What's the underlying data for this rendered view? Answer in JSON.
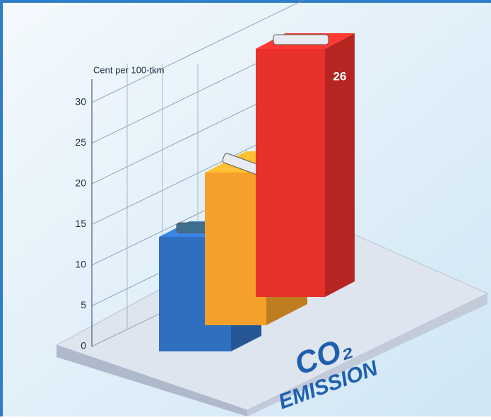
{
  "chart_data": {
    "type": "bar3d",
    "y_label": "Cent per 100-tkm",
    "categories": [
      null,
      null,
      null
    ],
    "values": [
      12,
      16,
      26
    ],
    "colors": [
      "#2f6fc0",
      "#f5a02a",
      "#e8302a"
    ],
    "ylim": [
      0,
      30
    ],
    "yticks": [
      0,
      5,
      10,
      15,
      20,
      25,
      30
    ],
    "grid": true,
    "annotations": [
      "CO₂",
      "EMISSION"
    ]
  }
}
